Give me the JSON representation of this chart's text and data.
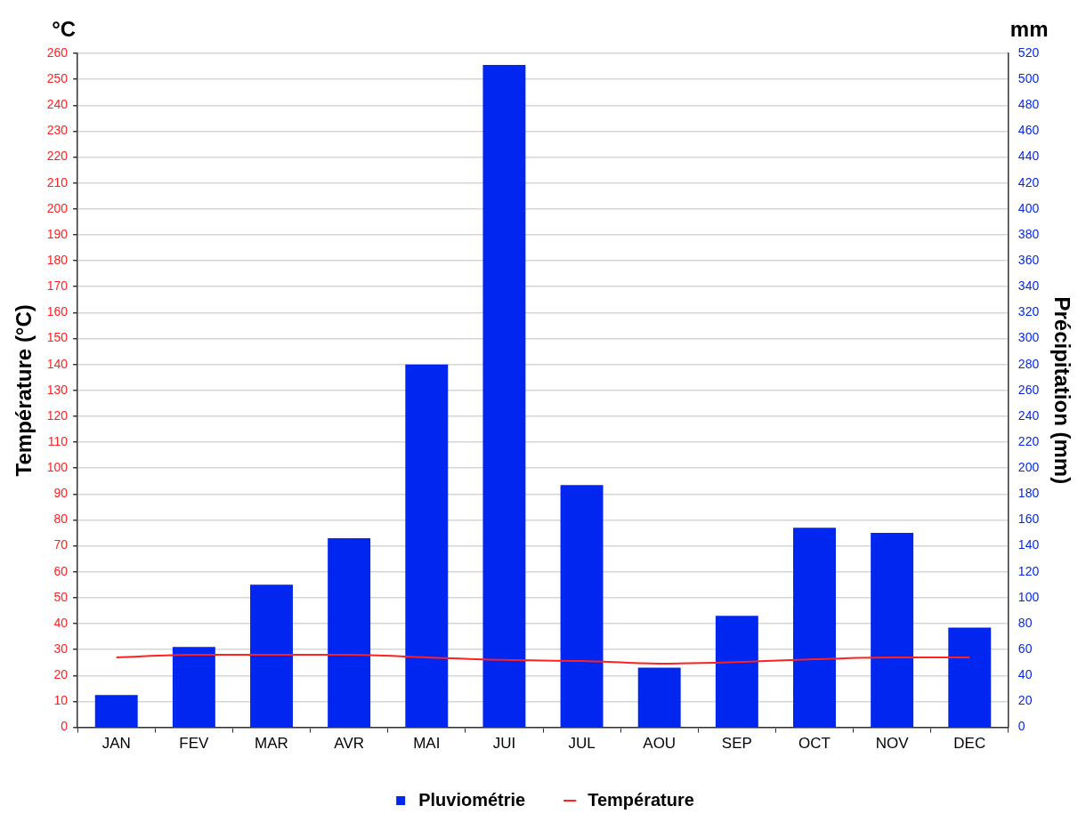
{
  "chart_data": {
    "type": "bar",
    "categories": [
      "JAN",
      "FEV",
      "MAR",
      "AVR",
      "MAI",
      "JUI",
      "JUL",
      "AOU",
      "SEP",
      "OCT",
      "NOV",
      "DEC"
    ],
    "ylabel": "Température (°C)",
    "y2label": "Précipitation (mm)",
    "annotations": [
      "°C",
      "mm"
    ],
    "series": [
      {
        "name": "Pluviométrie",
        "type": "bar",
        "axis": "y2",
        "color": "#0026f0",
        "values": [
          25,
          62,
          110,
          146,
          280,
          511,
          187,
          46,
          86,
          154,
          150,
          77
        ]
      },
      {
        "name": "Température",
        "type": "line",
        "axis": "y",
        "color": "#ff2020",
        "values": [
          27,
          28,
          28,
          28,
          27,
          26,
          25.6,
          24.6,
          25.2,
          26.3,
          27,
          27
        ]
      }
    ],
    "ylim": [
      0,
      260
    ],
    "yticks": [
      0,
      10,
      20,
      30,
      40,
      50,
      60,
      70,
      80,
      90,
      100,
      110,
      120,
      130,
      140,
      150,
      160,
      170,
      180,
      190,
      200,
      210,
      220,
      230,
      240,
      250,
      260
    ],
    "y2lim": [
      0,
      520
    ],
    "y2ticks": [
      0,
      20,
      40,
      60,
      80,
      100,
      120,
      140,
      160,
      180,
      200,
      220,
      240,
      260,
      280,
      300,
      320,
      340,
      360,
      380,
      400,
      420,
      440,
      460,
      480,
      500,
      520
    ],
    "grid": "y",
    "legend": "bottom",
    "marker": "none"
  }
}
